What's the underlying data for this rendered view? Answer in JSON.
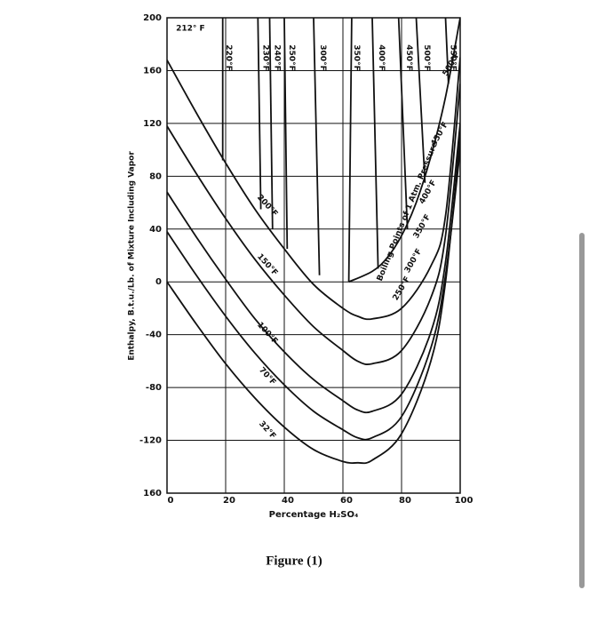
{
  "chart_data": {
    "type": "line",
    "x_label": "Percentage H₂SO₄",
    "y_label": "Enthalpy, B.t.u./Lb. of Mixture Including Vapor",
    "xlim": [
      0,
      100
    ],
    "ylim": [
      -160,
      200
    ],
    "xticks": [
      0,
      20,
      40,
      60,
      80,
      100
    ],
    "yticks": [
      200,
      160,
      120,
      80,
      40,
      0,
      -40,
      -80,
      -120,
      {
        "value": -160,
        "label": "160"
      }
    ],
    "grid": true,
    "color": "#111111",
    "series": [
      {
        "name": "32°F",
        "x": [
          0,
          10,
          20,
          30,
          40,
          50,
          60,
          65,
          70,
          80,
          90,
          95,
          100
        ],
        "values": [
          0,
          -32,
          -62,
          -88,
          -110,
          -127,
          -136,
          -137,
          -135,
          -115,
          -60,
          0,
          110
        ]
      },
      {
        "name": "70°F",
        "x": [
          0,
          10,
          20,
          30,
          40,
          50,
          60,
          65,
          70,
          80,
          90,
          95,
          100
        ],
        "values": [
          38,
          5,
          -26,
          -54,
          -78,
          -98,
          -112,
          -118,
          -118,
          -102,
          -50,
          5,
          100
        ]
      },
      {
        "name": "100°F",
        "x": [
          0,
          10,
          20,
          30,
          40,
          50,
          60,
          65,
          70,
          80,
          90,
          95,
          100
        ],
        "values": [
          68,
          34,
          2,
          -28,
          -53,
          -74,
          -90,
          -97,
          -98,
          -85,
          -38,
          15,
          120
        ]
      },
      {
        "name": "150°F",
        "x": [
          0,
          10,
          20,
          30,
          40,
          50,
          60,
          65,
          70,
          80,
          90,
          95,
          100
        ],
        "values": [
          118,
          82,
          48,
          17,
          -10,
          -34,
          -52,
          -60,
          -62,
          -52,
          -12,
          35,
          150
        ]
      },
      {
        "name": "200°F",
        "x": [
          0,
          10,
          20,
          30,
          40,
          50,
          60,
          65,
          70,
          80,
          90,
          95,
          100
        ],
        "values": [
          168,
          128,
          90,
          55,
          25,
          -2,
          -20,
          -26,
          -28,
          -20,
          12,
          50,
          170
        ]
      },
      {
        "name": "220°F",
        "x": [
          19,
          19
        ],
        "values": [
          200,
          92
        ]
      },
      {
        "name": "230°F",
        "x": [
          31,
          32
        ],
        "values": [
          200,
          55
        ]
      },
      {
        "name": "240°F",
        "x": [
          35,
          36
        ],
        "values": [
          200,
          40
        ]
      },
      {
        "name": "250°F",
        "x": [
          40,
          41
        ],
        "values": [
          200,
          25
        ]
      },
      {
        "name": "300°F",
        "x": [
          50,
          52
        ],
        "values": [
          200,
          5
        ]
      },
      {
        "name": "350°F",
        "x": [
          63,
          62
        ],
        "values": [
          200,
          0
        ]
      },
      {
        "name": "400°F",
        "x": [
          70,
          72
        ],
        "values": [
          200,
          10
        ]
      },
      {
        "name": "450°F",
        "x": [
          79,
          82
        ],
        "values": [
          200,
          40
        ]
      },
      {
        "name": "500°F",
        "x": [
          85,
          88
        ],
        "values": [
          200,
          75
        ]
      },
      {
        "name": "550°F",
        "x": [
          95,
          96
        ],
        "values": [
          200,
          150
        ]
      },
      {
        "name": "Boiling Points of 1 Atm. Pressure",
        "x": [
          62,
          70,
          75,
          80,
          85,
          90,
          95,
          100
        ],
        "values": [
          0,
          8,
          18,
          35,
          60,
          95,
          140,
          200
        ]
      }
    ],
    "annotations": [
      {
        "text": "212° F",
        "x": 8,
        "y": 192
      },
      {
        "text": "250°F",
        "x": 80,
        "y": -5
      },
      {
        "text": "300°F",
        "x": 84,
        "y": 16
      },
      {
        "text": "350°F",
        "x": 87,
        "y": 42
      },
      {
        "text": "400°F",
        "x": 89,
        "y": 68
      },
      {
        "text": "450°F",
        "x": 93,
        "y": 112
      },
      {
        "text": "500°F",
        "x": 97,
        "y": 165
      }
    ]
  },
  "caption": "Figure (1)"
}
